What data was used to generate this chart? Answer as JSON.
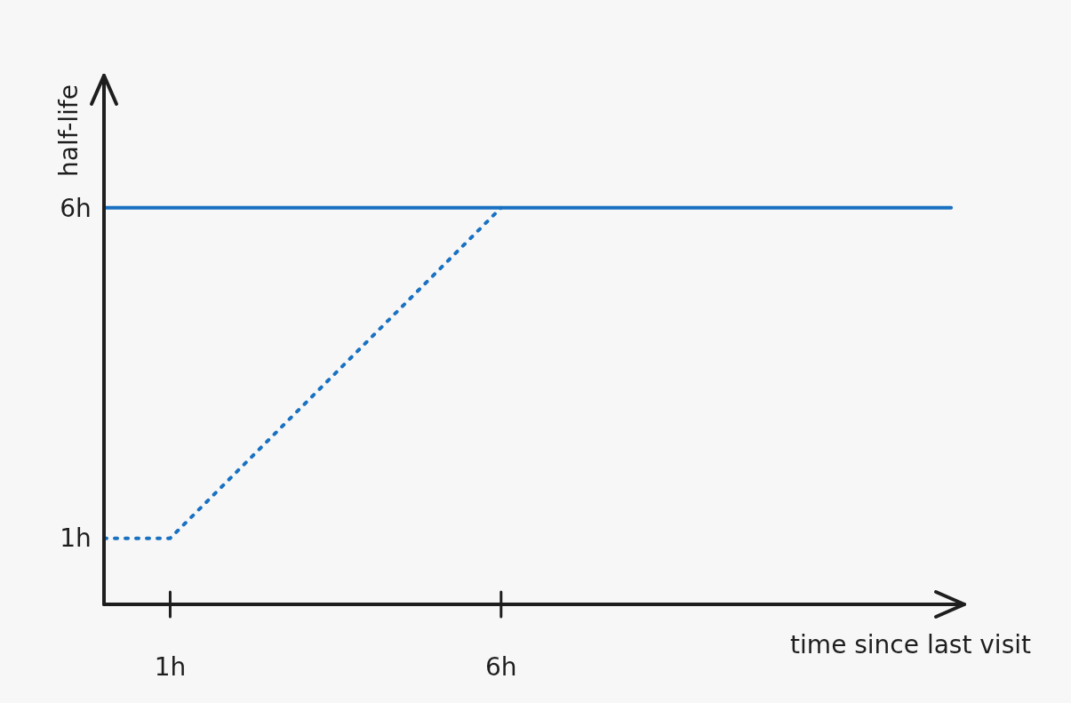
{
  "chart_data": {
    "type": "line",
    "xlabel": "time since last visit",
    "ylabel": "half-life",
    "xlim": [
      0,
      13
    ],
    "ylim": [
      0,
      8
    ],
    "xticks": [
      {
        "value": 1,
        "label": "1h"
      },
      {
        "value": 6,
        "label": "6h"
      }
    ],
    "yticks": [
      {
        "value": 1,
        "label": "1h"
      },
      {
        "value": 6,
        "label": "6h"
      }
    ],
    "grid": false,
    "marker": "none",
    "series": [
      {
        "color": "#1971c2",
        "line_style": "solid",
        "x": [
          0,
          12.8
        ],
        "values": [
          6,
          6
        ]
      },
      {
        "color": "#1971c2",
        "line_style": "dotted",
        "x": [
          0,
          1,
          6
        ],
        "values": [
          1,
          1,
          6
        ]
      }
    ]
  }
}
